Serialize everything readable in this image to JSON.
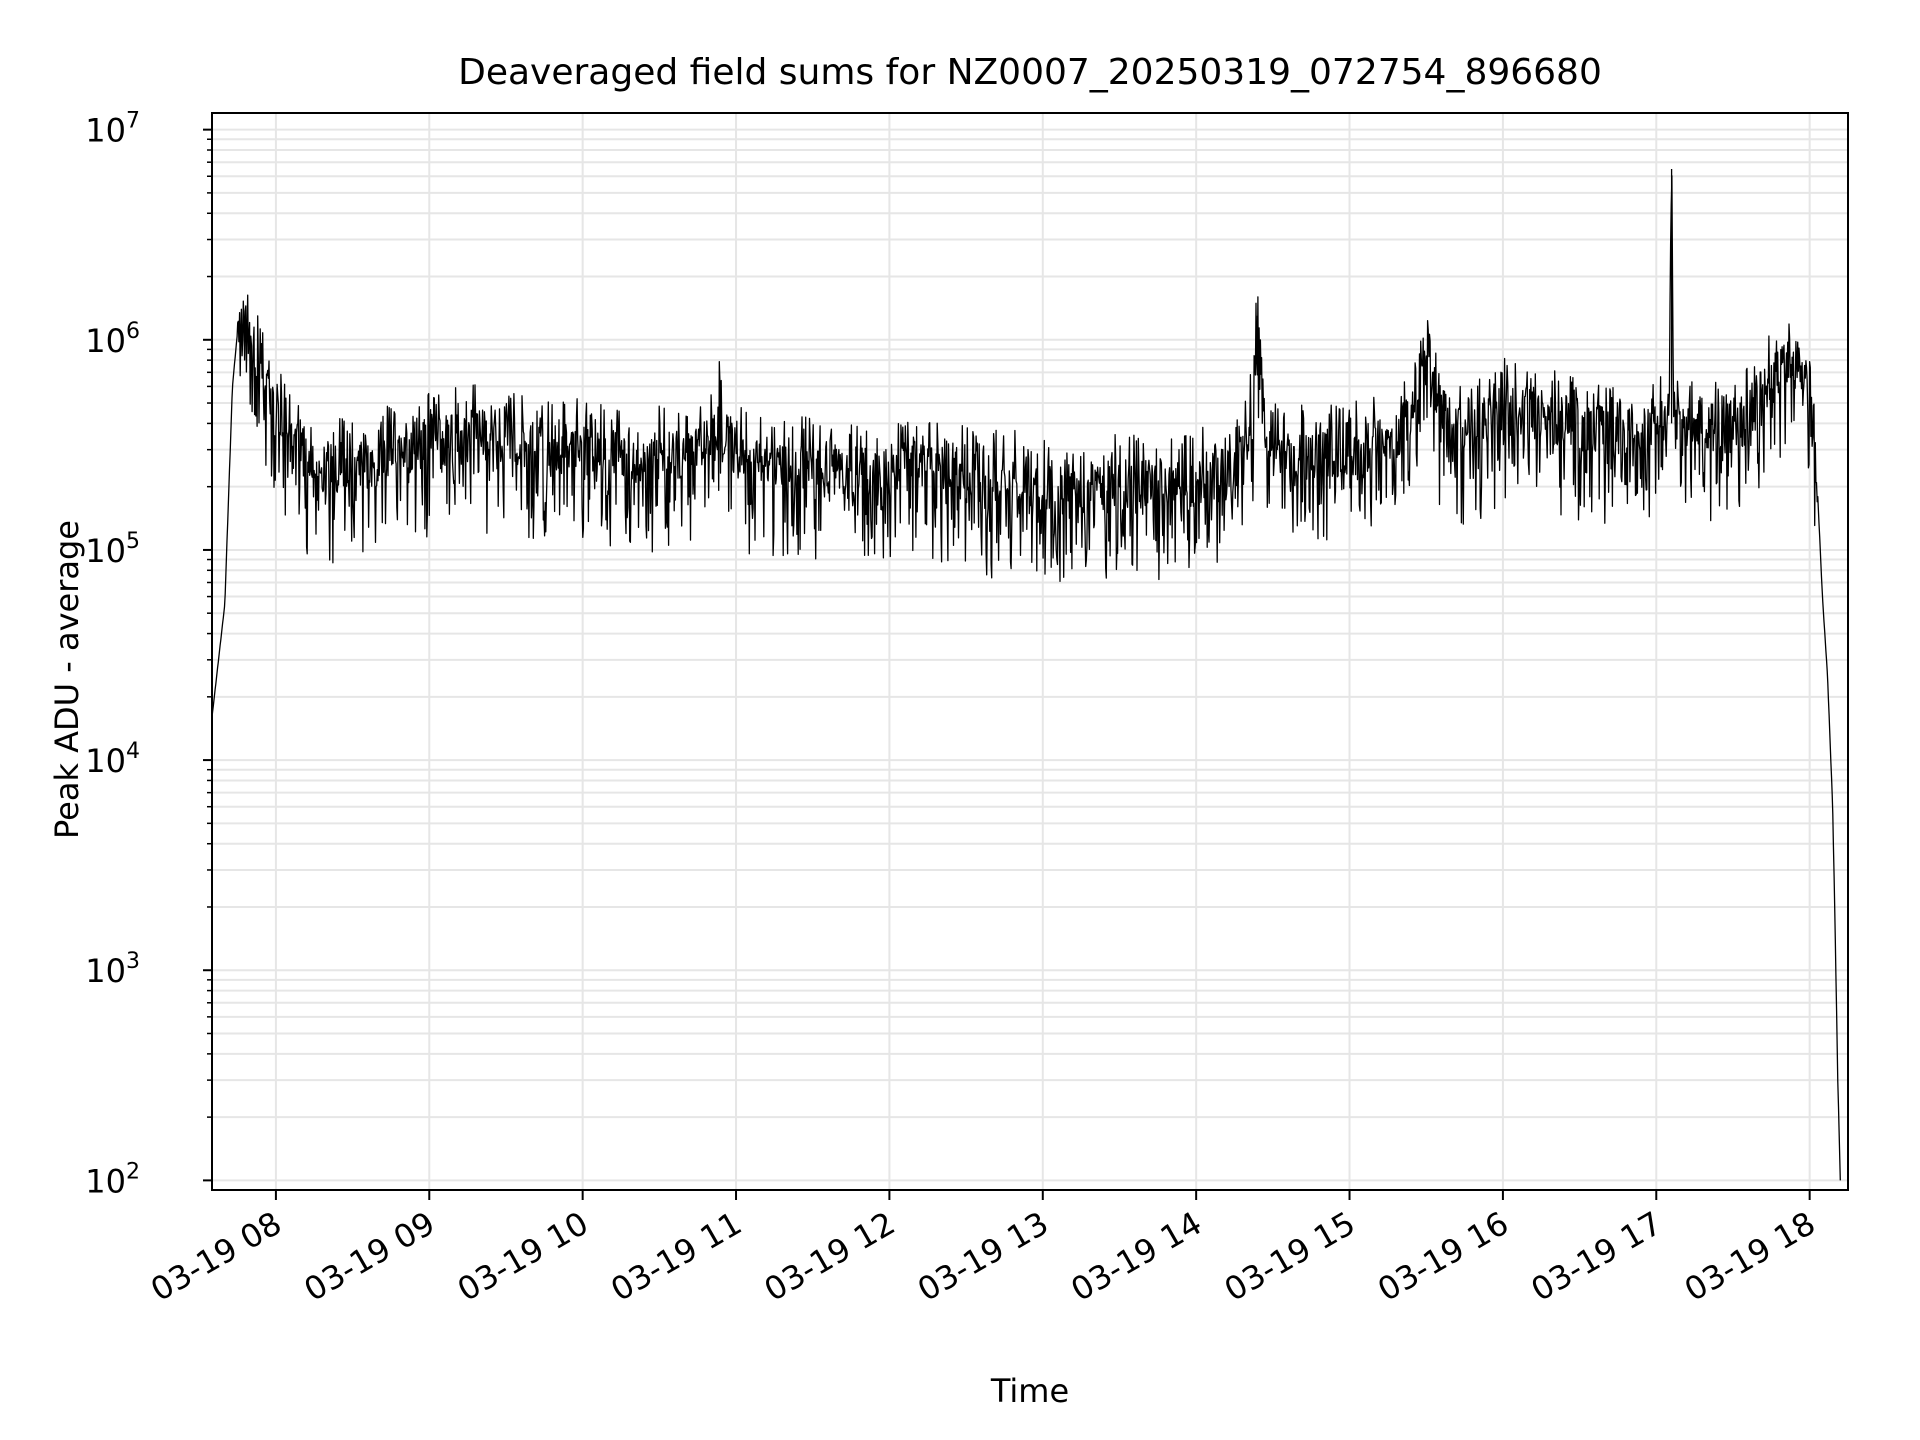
{
  "chart_data": {
    "type": "line",
    "title": "Deaveraged field sums for NZ0007_20250319_072754_896680",
    "xlabel": "Time",
    "ylabel": "Peak ADU - average",
    "yscale": "log",
    "ylim": [
      90,
      12000000
    ],
    "xlim": [
      "2025-03-19 07:35",
      "2025-03-19 18:15"
    ],
    "grid": true,
    "line_color": "#000000",
    "grid_color": "#e6e6e6",
    "x_tick_labels": [
      "03-19 08",
      "03-19 09",
      "03-19 10",
      "03-19 11",
      "03-19 12",
      "03-19 13",
      "03-19 14",
      "03-19 15",
      "03-19 16",
      "03-19 17",
      "03-19 18"
    ],
    "x_tick_values": [
      "2025-03-19 08:00",
      "2025-03-19 09:00",
      "2025-03-19 10:00",
      "2025-03-19 11:00",
      "2025-03-19 12:00",
      "2025-03-19 13:00",
      "2025-03-19 14:00",
      "2025-03-19 15:00",
      "2025-03-19 16:00",
      "2025-03-19 17:00",
      "2025-03-19 18:00"
    ],
    "y_tick_labels": [
      {
        "base": "10",
        "exp": "2",
        "value": 100
      },
      {
        "base": "10",
        "exp": "3",
        "value": 1000
      },
      {
        "base": "10",
        "exp": "4",
        "value": 10000
      },
      {
        "base": "10",
        "exp": "5",
        "value": 100000
      },
      {
        "base": "10",
        "exp": "6",
        "value": 1000000
      },
      {
        "base": "10",
        "exp": "7",
        "value": 10000000
      }
    ],
    "series": [
      {
        "x": [
          "2025-03-19 07:35",
          "2025-03-19 07:40",
          "2025-03-19 07:43",
          "2025-03-19 07:45",
          "2025-03-19 07:48",
          "2025-03-19 07:52",
          "2025-03-19 07:58",
          "2025-03-19 08:05",
          "2025-03-19 08:13",
          "2025-03-19 08:20",
          "2025-03-19 08:27",
          "2025-03-19 08:33",
          "2025-03-19 08:40",
          "2025-03-19 08:45",
          "2025-03-19 08:55",
          "2025-03-19 09:05",
          "2025-03-19 09:20",
          "2025-03-19 09:30",
          "2025-03-19 09:45",
          "2025-03-19 10:00",
          "2025-03-19 10:15",
          "2025-03-19 10:30",
          "2025-03-19 10:45",
          "2025-03-19 10:50",
          "2025-03-19 10:53",
          "2025-03-19 10:56",
          "2025-03-19 11:05",
          "2025-03-19 11:30",
          "2025-03-19 11:45",
          "2025-03-19 12:00",
          "2025-03-19 12:10",
          "2025-03-19 12:20",
          "2025-03-19 12:35",
          "2025-03-19 13:00",
          "2025-03-19 13:20",
          "2025-03-19 13:35",
          "2025-03-19 13:55",
          "2025-03-19 14:05",
          "2025-03-19 14:15",
          "2025-03-19 14:22",
          "2025-03-19 14:24",
          "2025-03-19 14:27",
          "2025-03-19 14:35",
          "2025-03-19 14:50",
          "2025-03-19 15:05",
          "2025-03-19 15:20",
          "2025-03-19 15:25",
          "2025-03-19 15:30",
          "2025-03-19 15:35",
          "2025-03-19 15:45",
          "2025-03-19 16:00",
          "2025-03-19 16:15",
          "2025-03-19 16:30",
          "2025-03-19 16:45",
          "2025-03-19 17:00",
          "2025-03-19 17:05",
          "2025-03-19 17:06",
          "2025-03-19 17:07",
          "2025-03-19 17:10",
          "2025-03-19 17:20",
          "2025-03-19 17:30",
          "2025-03-19 17:40",
          "2025-03-19 17:50",
          "2025-03-19 17:55",
          "2025-03-19 18:00",
          "2025-03-19 18:03",
          "2025-03-19 18:05",
          "2025-03-19 18:07",
          "2025-03-19 18:09",
          "2025-03-19 18:10",
          "2025-03-19 18:11",
          "2025-03-19 18:12"
        ],
        "y": [
          16000,
          55000,
          600000,
          1100000,
          1200000,
          900000,
          600000,
          400000,
          280000,
          250000,
          260000,
          280000,
          300000,
          310000,
          330000,
          350000,
          380000,
          350000,
          330000,
          320000,
          310000,
          300000,
          300000,
          320000,
          600000,
          330000,
          280000,
          260000,
          250000,
          240000,
          280000,
          250000,
          230000,
          220000,
          210000,
          220000,
          220000,
          240000,
          260000,
          450000,
          1300000,
          400000,
          300000,
          310000,
          320000,
          340000,
          600000,
          1000000,
          500000,
          350000,
          500000,
          450000,
          400000,
          380000,
          400000,
          450000,
          6500000,
          450000,
          420000,
          420000,
          450000,
          550000,
          800000,
          900000,
          550000,
          200000,
          60000,
          25000,
          6000,
          1500,
          300,
          100
        ],
        "noise_range": [
          0.08,
          3
        ]
      }
    ]
  }
}
